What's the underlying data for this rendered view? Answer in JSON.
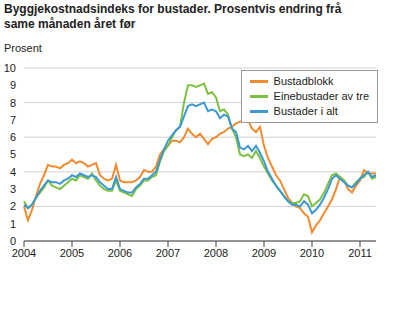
{
  "chart_data": {
    "type": "line",
    "title": "Byggjekostnadsindeks for bustader. Prosentvis endring frå same månaden året før",
    "y_label": "Prosent",
    "categories": [
      "2004",
      null,
      null,
      null,
      null,
      null,
      null,
      null,
      null,
      null,
      null,
      null,
      "2005",
      null,
      null,
      null,
      null,
      null,
      null,
      null,
      null,
      null,
      null,
      null,
      "2006",
      null,
      null,
      null,
      null,
      null,
      null,
      null,
      null,
      null,
      null,
      null,
      "2007",
      null,
      null,
      null,
      null,
      null,
      null,
      null,
      null,
      null,
      null,
      null,
      "2008",
      null,
      null,
      null,
      null,
      null,
      null,
      null,
      null,
      null,
      null,
      null,
      "2009",
      null,
      null,
      null,
      null,
      null,
      null,
      null,
      null,
      null,
      null,
      null,
      "2010",
      null,
      null,
      null,
      null,
      null,
      null,
      null,
      null,
      null,
      null,
      null,
      "2011",
      null,
      null,
      null,
      null
    ],
    "series": [
      {
        "name": "Bustadblokk",
        "color": "#f28a2e",
        "values": [
          2.0,
          1.2,
          1.8,
          2.6,
          3.3,
          3.8,
          4.4,
          4.3,
          4.3,
          4.2,
          4.4,
          4.5,
          4.7,
          4.5,
          4.6,
          4.5,
          4.3,
          4.4,
          4.5,
          3.8,
          3.6,
          3.5,
          3.6,
          4.4,
          3.5,
          3.4,
          3.4,
          3.4,
          3.5,
          3.7,
          4.1,
          4.0,
          4.0,
          4.3,
          5.0,
          5.3,
          5.5,
          5.8,
          5.8,
          5.7,
          6.0,
          6.5,
          6.2,
          6.0,
          6.2,
          5.9,
          5.6,
          5.9,
          6.0,
          6.2,
          6.3,
          6.5,
          6.6,
          6.8,
          6.9,
          7.0,
          7.0,
          6.5,
          6.3,
          6.6,
          5.5,
          4.8,
          4.3,
          3.8,
          3.5,
          3.0,
          2.5,
          2.2,
          2.0,
          1.9,
          1.6,
          1.4,
          0.5,
          0.9,
          1.2,
          1.6,
          2.0,
          2.4,
          3.0,
          3.7,
          3.5,
          3.0,
          2.8,
          3.2,
          3.5,
          4.1,
          3.9,
          3.9,
          3.9
        ]
      },
      {
        "name": "Einebustader av tre",
        "color": "#7cc242",
        "values": [
          2.3,
          1.9,
          2.1,
          2.5,
          2.8,
          3.1,
          3.5,
          3.2,
          3.1,
          3.0,
          3.2,
          3.4,
          3.6,
          3.5,
          3.8,
          3.7,
          3.6,
          3.9,
          3.5,
          3.2,
          3.0,
          2.9,
          2.9,
          3.5,
          2.9,
          2.8,
          2.7,
          2.6,
          3.0,
          3.2,
          3.5,
          3.5,
          3.7,
          3.8,
          4.6,
          5.2,
          5.5,
          6.0,
          6.4,
          6.6,
          8.0,
          9.0,
          9.0,
          8.9,
          9.0,
          9.1,
          8.5,
          8.6,
          8.3,
          7.5,
          7.6,
          7.3,
          6.5,
          6.0,
          5.0,
          4.9,
          5.0,
          4.8,
          5.2,
          4.8,
          4.3,
          3.9,
          3.5,
          3.2,
          2.9,
          2.6,
          2.3,
          2.2,
          2.2,
          2.3,
          2.7,
          2.6,
          2.0,
          2.2,
          2.4,
          2.8,
          3.3,
          3.8,
          3.9,
          3.7,
          3.5,
          3.2,
          3.1,
          3.4,
          3.6,
          3.7,
          4.0,
          3.6,
          3.7
        ]
      },
      {
        "name": "Bustader i alt",
        "color": "#3d98d4",
        "values": [
          2.1,
          1.9,
          2.1,
          2.5,
          2.9,
          3.2,
          3.5,
          3.4,
          3.4,
          3.3,
          3.5,
          3.6,
          3.8,
          3.7,
          3.9,
          3.8,
          3.7,
          3.8,
          3.7,
          3.4,
          3.2,
          3.0,
          3.0,
          3.7,
          3.0,
          2.9,
          2.8,
          2.8,
          3.1,
          3.3,
          3.6,
          3.6,
          3.8,
          4.0,
          4.7,
          5.3,
          5.8,
          6.1,
          6.4,
          6.6,
          7.2,
          7.8,
          7.9,
          7.8,
          7.9,
          8.0,
          7.5,
          7.6,
          7.5,
          7.1,
          7.3,
          7.2,
          6.5,
          6.3,
          5.4,
          5.3,
          5.5,
          5.2,
          5.5,
          5.1,
          4.6,
          4.0,
          3.6,
          3.2,
          2.9,
          2.6,
          2.3,
          2.1,
          2.1,
          2.0,
          2.3,
          2.1,
          1.6,
          1.8,
          2.1,
          2.5,
          3.0,
          3.6,
          3.8,
          3.6,
          3.4,
          3.2,
          3.1,
          3.3,
          3.6,
          3.8,
          4.0,
          3.7,
          3.8
        ]
      }
    ],
    "ylim": [
      0,
      10
    ],
    "yticks": [
      0,
      1,
      2,
      3,
      4,
      5,
      6,
      7,
      8,
      9,
      10
    ],
    "grid": true,
    "legend": "upper right"
  }
}
